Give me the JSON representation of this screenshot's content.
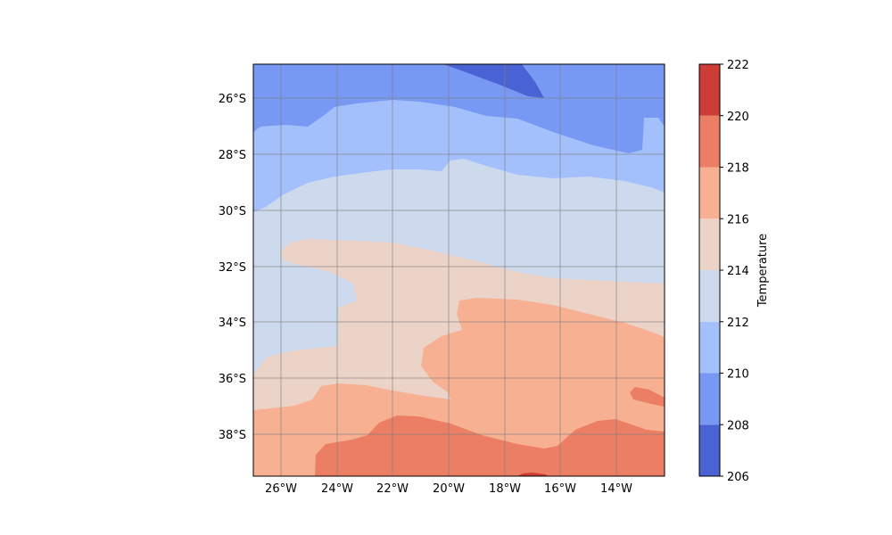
{
  "map": {
    "x_ticks": [
      "26°W",
      "24°W",
      "22°W",
      "20°W",
      "18°W",
      "16°W",
      "14°W"
    ],
    "x_tick_values": [
      -26,
      -24,
      -22,
      -20,
      -18,
      -16,
      -14
    ],
    "y_ticks": [
      "26°S",
      "28°S",
      "30°S",
      "32°S",
      "34°S",
      "36°S",
      "38°S"
    ],
    "y_tick_values": [
      -26,
      -28,
      -30,
      -32,
      -34,
      -36,
      -38
    ],
    "lon_range": [
      -27,
      -12.2
    ],
    "lat_range": [
      -39.5,
      -24.8
    ],
    "gridlines": true
  },
  "colorbar": {
    "label": "Temperature",
    "levels": [
      206,
      208,
      210,
      212,
      214,
      216,
      218,
      220,
      222
    ],
    "tick_labels": [
      "206",
      "208",
      "210",
      "212",
      "214",
      "216",
      "218",
      "220",
      "222"
    ],
    "colors": [
      "#4a63d4",
      "#7799f3",
      "#a3c0fd",
      "#cdd9ec",
      "#ecd3c8",
      "#f7b092",
      "#ec7e64",
      "#cd3d36"
    ]
  }
}
